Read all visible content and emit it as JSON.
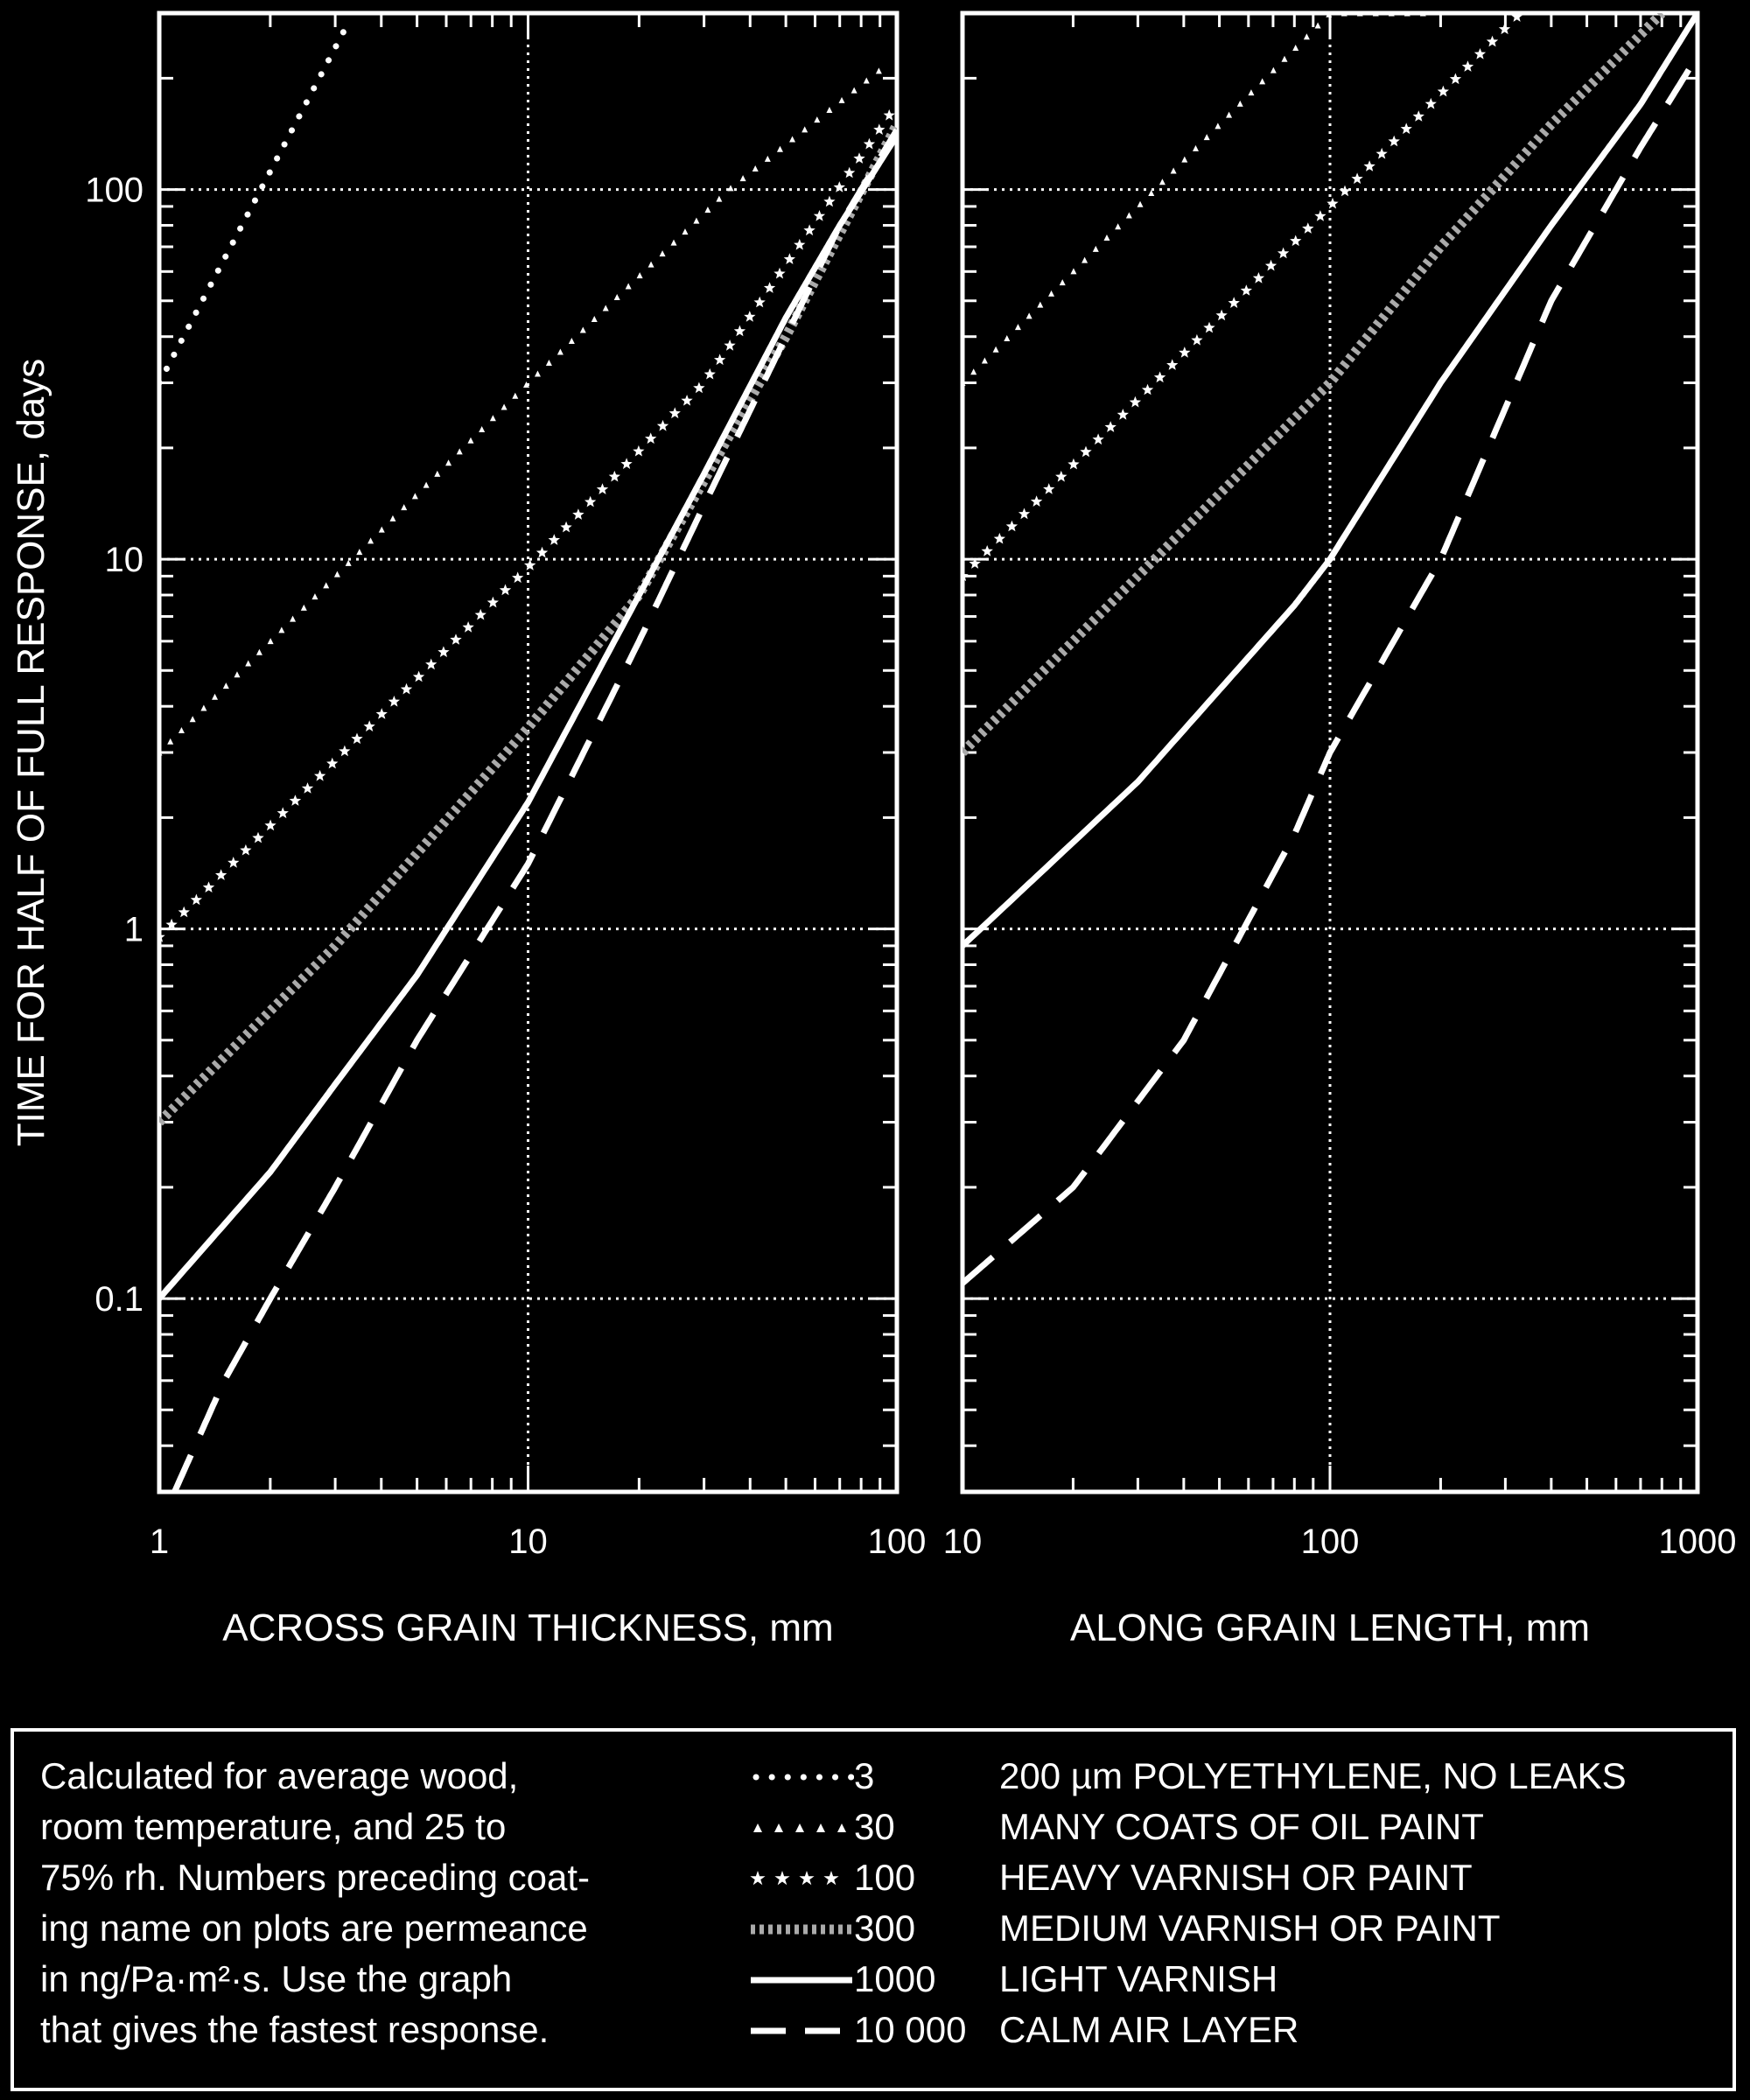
{
  "chart_data": [
    {
      "type": "line",
      "xlabel": "ACROSS GRAIN THICKNESS, mm",
      "ylabel": "TIME FOR HALF OF FULL RESPONSE, days",
      "xscale": "log",
      "yscale": "log",
      "xlim": [
        1,
        100
      ],
      "ylim": [
        0.03,
        300
      ],
      "grid": true,
      "xticks": [
        {
          "v": 1,
          "label": "1"
        },
        {
          "v": 10,
          "label": "10"
        },
        {
          "v": 100,
          "label": "100"
        }
      ],
      "yticks": [
        {
          "v": 0.1,
          "label": "0.1"
        },
        {
          "v": 1,
          "label": "1"
        },
        {
          "v": 10,
          "label": "10"
        },
        {
          "v": 100,
          "label": "100"
        }
      ],
      "series": [
        {
          "name": "3",
          "style": "dot",
          "x": [
            1,
            3.3
          ],
          "y": [
            30,
            290
          ]
        },
        {
          "name": "30",
          "style": "triangle",
          "x": [
            1,
            10,
            35,
            95
          ],
          "y": [
            3,
            30,
            100,
            220
          ]
        },
        {
          "name": "100",
          "style": "star",
          "x": [
            1,
            10,
            30,
            100
          ],
          "y": [
            0.95,
            9.5,
            30,
            170
          ]
        },
        {
          "name": "300",
          "style": "square",
          "x": [
            1,
            3,
            10,
            20,
            50,
            100
          ],
          "y": [
            0.3,
            0.9,
            3.5,
            8,
            40,
            150
          ]
        },
        {
          "name": "1000",
          "style": "solid",
          "x": [
            1,
            2,
            3,
            5,
            10,
            20,
            30,
            50,
            70,
            100
          ],
          "y": [
            0.1,
            0.22,
            0.38,
            0.75,
            2.2,
            8,
            17,
            45,
            80,
            140
          ]
        },
        {
          "name": "10 000",
          "style": "dash",
          "x": [
            1.1,
            1.5,
            2,
            3,
            5,
            10,
            20,
            30,
            50,
            70,
            100
          ],
          "y": [
            0.03,
            0.06,
            0.1,
            0.2,
            0.5,
            1.5,
            6,
            14,
            40,
            80,
            145
          ]
        }
      ]
    },
    {
      "type": "line",
      "xlabel": "ALONG GRAIN LENGTH, mm",
      "ylabel": "",
      "xscale": "log",
      "yscale": "log",
      "xlim": [
        10,
        1000
      ],
      "ylim": [
        0.03,
        300
      ],
      "grid": true,
      "xticks": [
        {
          "v": 10,
          "label": "10"
        },
        {
          "v": 100,
          "label": "100"
        },
        {
          "v": 1000,
          "label": "1000"
        }
      ],
      "yticks": [
        {
          "v": 0.1,
          "label": ""
        },
        {
          "v": 1,
          "label": ""
        },
        {
          "v": 10,
          "label": ""
        },
        {
          "v": 100,
          "label": ""
        }
      ],
      "series": [
        {
          "name": "30",
          "style": "triangle",
          "x": [
            10,
            100,
            180
          ],
          "y": [
            30,
            300,
            300
          ]
        },
        {
          "name": "100",
          "style": "star",
          "x": [
            10,
            100,
            330
          ],
          "y": [
            9,
            90,
            300
          ]
        },
        {
          "name": "300",
          "style": "square",
          "x": [
            10,
            100,
            200,
            400,
            800
          ],
          "y": [
            3,
            30,
            70,
            150,
            300
          ]
        },
        {
          "name": "1000",
          "style": "solid",
          "x": [
            10,
            30,
            80,
            100,
            200,
            400,
            700,
            1000
          ],
          "y": [
            0.9,
            2.5,
            7.5,
            10,
            30,
            80,
            170,
            300
          ]
        },
        {
          "name": "10 000",
          "style": "dash",
          "x": [
            10,
            20,
            40,
            80,
            100,
            200,
            400,
            700,
            1000
          ],
          "y": [
            0.11,
            0.2,
            0.5,
            1.8,
            3,
            10,
            50,
            130,
            230
          ]
        }
      ]
    }
  ],
  "note": "Calculated for average wood, room temperature, and 25 to 75% rh. Numbers preceding coat-ing name on plots are permeance in ng/Pa·m²·s. Use the graph that gives the fastest response.",
  "note_lines": [
    "Calculated for average wood,",
    "room temperature, and 25 to",
    "75% rh. Numbers preceding coat-",
    "ing name on plots are permeance",
    "in ng/Pa·m²·s. Use the graph",
    "that gives the fastest response."
  ],
  "legend": [
    {
      "style": "dot",
      "value": "3",
      "name": "200 µm POLYETHYLENE, NO LEAKS"
    },
    {
      "style": "triangle",
      "value": "30",
      "name": "MANY COATS OF OIL PAINT"
    },
    {
      "style": "star",
      "value": "100",
      "name": "HEAVY VARNISH OR PAINT"
    },
    {
      "style": "square",
      "value": "300",
      "name": "MEDIUM VARNISH OR PAINT"
    },
    {
      "style": "solid",
      "value": "1000",
      "name": "LIGHT VARNISH"
    },
    {
      "style": "dash",
      "value": "10 000",
      "name": "CALM AIR LAYER"
    }
  ],
  "colors": {
    "background": "#000000",
    "foreground": "#ffffff"
  }
}
